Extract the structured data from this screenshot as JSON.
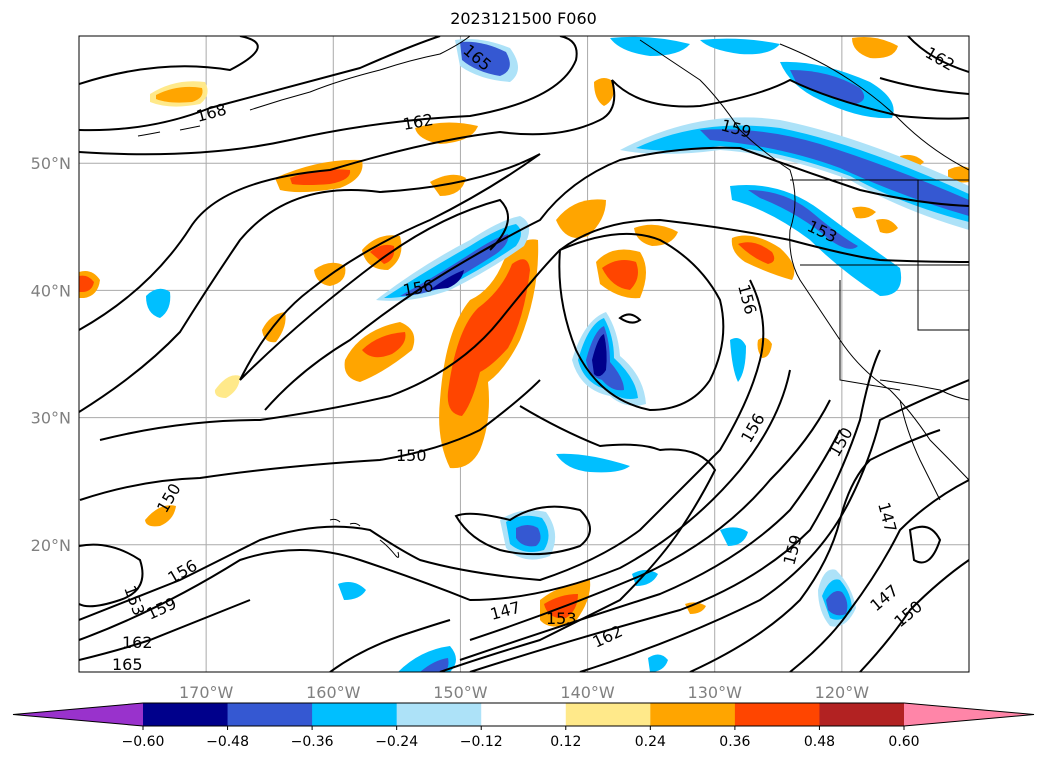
{
  "title": "2023121500 F060",
  "map": {
    "projection": "plate-carree",
    "lon_range": [
      -180,
      -110
    ],
    "lat_range": [
      10,
      60
    ],
    "gridlines": true,
    "lat_ticks": [
      {
        "value": 50,
        "label": "50°N"
      },
      {
        "value": 40,
        "label": "40°N"
      },
      {
        "value": 30,
        "label": "30°N"
      },
      {
        "value": 20,
        "label": "20°N"
      }
    ],
    "lon_ticks": [
      {
        "value": -170,
        "label": "170°W"
      },
      {
        "value": -160,
        "label": "160°W"
      },
      {
        "value": -150,
        "label": "150°W"
      },
      {
        "value": -140,
        "label": "140°W"
      },
      {
        "value": -130,
        "label": "130°W"
      },
      {
        "value": -120,
        "label": "120°W"
      }
    ],
    "contour_labels": [
      "165",
      "162",
      "168",
      "156",
      "150",
      "147",
      "153",
      "159",
      "162",
      "165",
      "156",
      "150",
      "147",
      "150",
      "153",
      "159",
      "156",
      "162",
      "162"
    ]
  },
  "colorbar": {
    "extend": "both",
    "bins": [
      "#9932CC",
      "#00008B",
      "#3558D2",
      "#00BFFF",
      "#ADE2F8",
      "#FFFFFF",
      "#FFE98A",
      "#FFA500",
      "#FF4500",
      "#B22222",
      "#FF85A8"
    ],
    "tick_labels": [
      "−0.60",
      "−0.48",
      "−0.36",
      "−0.24",
      "−0.12",
      "0.12",
      "0.24",
      "0.36",
      "0.48",
      "0.60"
    ]
  }
}
